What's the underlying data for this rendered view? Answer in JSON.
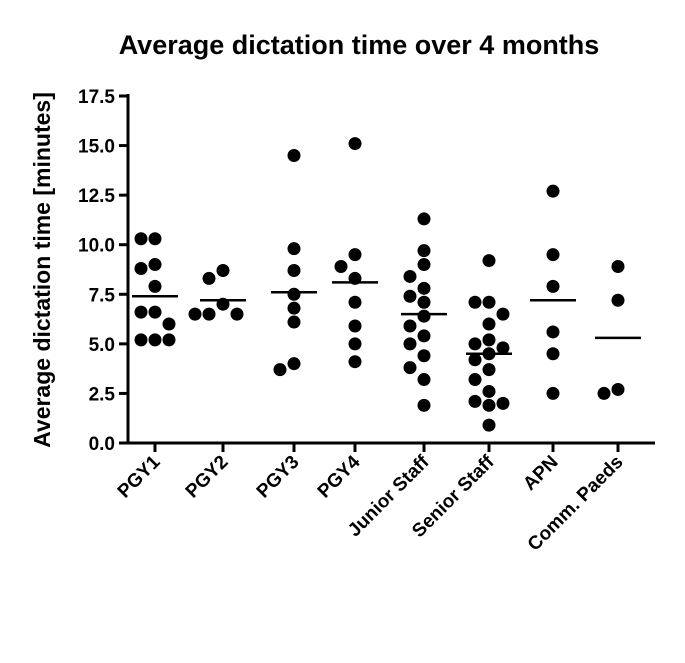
{
  "chart_data": {
    "type": "scatter",
    "title": "Average dictation time over 4 months",
    "xlabel": "",
    "ylabel": "Average dictation time [minutes]",
    "ylim": [
      0,
      17.5
    ],
    "yticks": [
      "0.0",
      "2.5",
      "5.0",
      "7.5",
      "10.0",
      "12.5",
      "15.0",
      "17.5"
    ],
    "grid": false,
    "categories": [
      "PGY1",
      "PGY2",
      "PGY3",
      "PGY4",
      "Junior Staff",
      "Senior Staff",
      "APN",
      "Comm. Paeds"
    ],
    "means": [
      7.4,
      7.2,
      7.6,
      8.1,
      6.5,
      4.5,
      7.2,
      5.3
    ],
    "points": [
      [
        10.3,
        10.3,
        9.0,
        8.8,
        7.9,
        6.6,
        6.6,
        6.0,
        5.2,
        5.2,
        5.2
      ],
      [
        8.7,
        8.3,
        7.0,
        6.5,
        6.5,
        6.5
      ],
      [
        14.5,
        9.8,
        8.7,
        7.5,
        6.8,
        6.1,
        4.0,
        3.7
      ],
      [
        15.1,
        9.5,
        8.9,
        8.3,
        7.1,
        5.9,
        5.0,
        4.1
      ],
      [
        11.3,
        9.7,
        9.0,
        8.4,
        7.8,
        7.4,
        7.1,
        6.4,
        5.9,
        5.4,
        5.0,
        4.4,
        3.8,
        3.2,
        1.9
      ],
      [
        9.2,
        7.1,
        7.1,
        6.5,
        6.0,
        5.2,
        5.0,
        4.8,
        4.5,
        4.2,
        3.7,
        3.2,
        2.6,
        2.1,
        2.0,
        1.9,
        0.9
      ],
      [
        12.7,
        9.5,
        7.9,
        5.6,
        4.5,
        2.5
      ],
      [
        8.9,
        7.2,
        2.7,
        2.5
      ]
    ]
  }
}
